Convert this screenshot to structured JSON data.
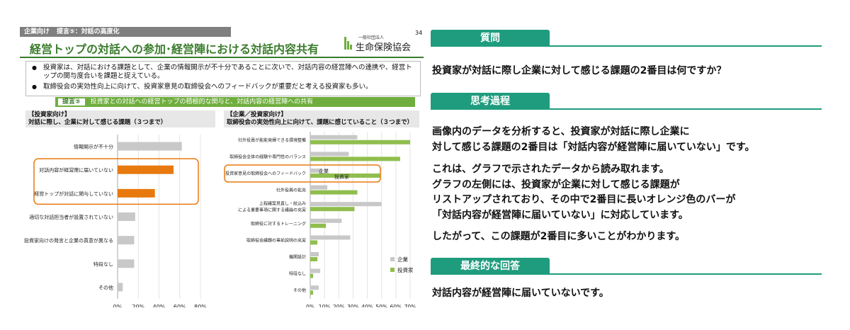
{
  "slide": {
    "crumb_a": "企業向け",
    "crumb_b": "提言⑤：対話の高度化",
    "page_number": "34",
    "title": "経営トップの対話への参加･経営陣における対話内容共有",
    "logo_small": "一般社団法人",
    "logo_big": "生命保険協会",
    "bullets": [
      "投資家は、対話における課題として、企業の情報開示が不十分であることに次いで、対話内容の経営陣への連携や、経営トップの関与度合いを課題と捉えている。",
      "取締役会の実効性向上に向けて、投資家意見の取締役会へのフィードバックが重要だと考える投資家も多い。"
    ],
    "proposal_tag": "提言⑤",
    "proposal_text": "投資家との対話への経営トップの積極的な関与と、対話内容の経営陣への共有",
    "left_head_1": "【投資家向け】",
    "left_head_2": "対話に際し、企業に対して感じる課題（３つまで）",
    "right_head_1": "【企業／投資家向け】",
    "right_head_2": "取締役会の実効性向上に向けて、課題に感じていること（３つまで）"
  },
  "chart_data": [
    {
      "type": "bar",
      "orientation": "horizontal",
      "categories": [
        "情報開示が不十分",
        "対話内容が経営陣に届いていない",
        "経営トップが対話に関与していない",
        "適切な対話担当者が設置されていない",
        "投資家向けの発言と企業の真意が異なる",
        "特段なし",
        "その他"
      ],
      "values": [
        62,
        54,
        36,
        17,
        16,
        16,
        5
      ],
      "highlighted": [
        false,
        true,
        true,
        false,
        false,
        false,
        false
      ],
      "xlim": [
        0,
        80
      ],
      "xticks": [
        "0%",
        "20%",
        "40%",
        "60%",
        "80%"
      ]
    },
    {
      "type": "bar",
      "orientation": "horizontal",
      "categories": [
        "社外役員が能能発揮できる環境整備",
        "取締役会全体の経験や専門性のバランス",
        "投資家意見の取締役会へのフィードバック",
        "社外役員の拡充",
        "上程議案見直し・絞込み による重要事項に関する議論の充実",
        "取締役に対するトレーニング",
        "取締役会議題の事前説明の充実",
        "機関設計",
        "特段なし",
        "その他"
      ],
      "series": [
        {
          "name": "企業",
          "values": [
            33,
            27,
            8,
            12,
            50,
            22,
            28,
            6,
            7,
            6
          ]
        },
        {
          "name": "投資家",
          "values": [
            70,
            63,
            49,
            33,
            31,
            11,
            5,
            5,
            2,
            2
          ]
        }
      ],
      "highlighted_category": "投資家意見の取締役会へのフィードバック",
      "inline_labels": [
        "企業",
        "投資家"
      ],
      "xlim": [
        0,
        70
      ],
      "xticks": [
        "0%",
        "10%",
        "20%",
        "30%",
        "40%",
        "50%",
        "60%",
        "70%"
      ],
      "legend": "bottom-right"
    }
  ],
  "qa": {
    "question_header": "質問",
    "question": "投資家が対話に際し企業に対して感じる課題の2番目は何ですか？",
    "thinking_header": "思考過程",
    "thinking_1": "画像内のデータを分析すると、投資家が対話に際し企業に",
    "thinking_2": "対して感じる課題の2番目は「対話内容が経営陣に届いていない」です。",
    "thinking_3": "これは、グラフで示されたデータから読み取れます。",
    "thinking_4": "グラフの左側には、投資家が企業に対して感じる課題が",
    "thinking_5": "リストアップされており、その中で2番目に長いオレンジ色のバーが",
    "thinking_6": "「対話内容が経営陣に届いていない」に対応しています。",
    "thinking_7": "したがって、この課題が2番目に多いことがわかります。",
    "answer_header": "最終的な回答",
    "answer": "対話内容が経営陣に届いていないです。"
  },
  "colors": {
    "accent": "#1f9c7e",
    "slide_green": "#3a7c2c",
    "bar_gray": "#c8c8c8",
    "bar_orange": "#e8790f",
    "bar_green": "#8fbe4e"
  }
}
